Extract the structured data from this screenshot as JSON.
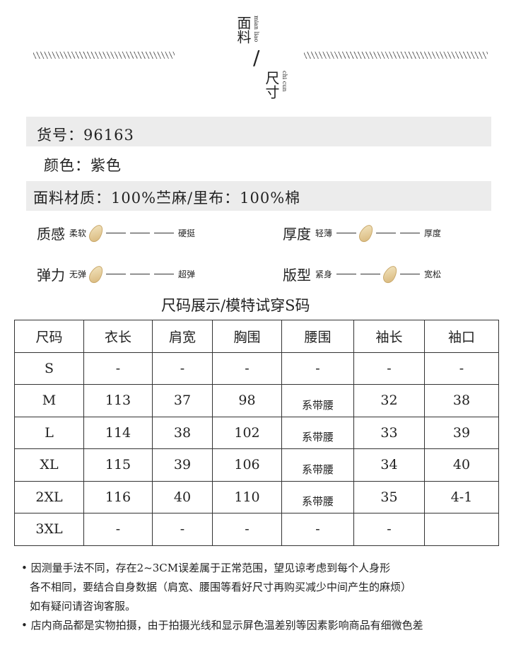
{
  "header": {
    "title_top": "面料",
    "pinyin_top": "mian liao",
    "separator": "/",
    "title_bottom": "尺寸",
    "pinyin_bottom": "chi cun"
  },
  "info": {
    "item_no": "货号：96163",
    "color": "颜色：紫色",
    "material": "面料材质：100%苎麻/里布：100%棉"
  },
  "attributes": [
    {
      "label": "质感",
      "left": "柔软",
      "right": "硬挺",
      "level": 0
    },
    {
      "label": "厚度",
      "left": "轻薄",
      "right": "厚度",
      "level": 1
    },
    {
      "label": "弹力",
      "left": "无弹",
      "right": "超弹",
      "level": 0
    },
    {
      "label": "版型",
      "left": "紧身",
      "right": "宽松",
      "level": 2
    }
  ],
  "size_title": "尺码展示/模特试穿S码",
  "table": {
    "headers": [
      "尺码",
      "衣长",
      "肩宽",
      "胸围",
      "腰围",
      "袖长",
      "袖口"
    ],
    "rows": [
      [
        "S",
        "-",
        "-",
        "-",
        "-",
        "-",
        "-"
      ],
      [
        "M",
        "113",
        "37",
        "98",
        "系带腰",
        "32",
        "38"
      ],
      [
        "L",
        "114",
        "38",
        "102",
        "系带腰",
        "33",
        "39"
      ],
      [
        "XL",
        "115",
        "39",
        "106",
        "系带腰",
        "34",
        "40"
      ],
      [
        "2XL",
        "116",
        "40",
        "110",
        "系带腰",
        "35",
        "4-1"
      ],
      [
        "3XL",
        "-",
        "-",
        "-",
        "-",
        "-",
        ""
      ]
    ]
  },
  "notes": [
    "• 因测量手法不同，存在2~3CM误差属于正常范围，望见谅考虑到每个人身形",
    "各不相同，要结合自身数据（肩宽、腰围等看好尺寸再购买减少中间产生的麻烦）",
    "如有疑问请咨询客服。",
    "• 店内商品都是实物拍摄，由于拍摄光线和显示屏色温差别等因素影响商品有细微色差"
  ]
}
